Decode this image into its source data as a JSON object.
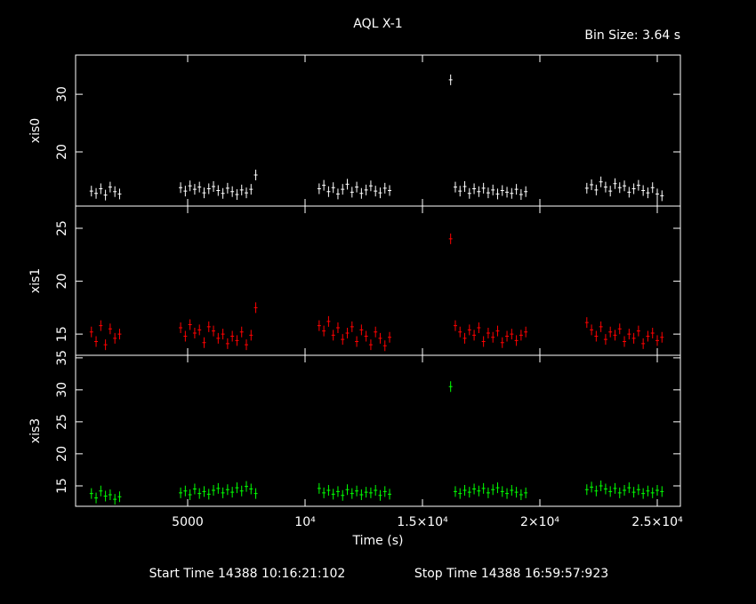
{
  "chart_data": [
    {
      "type": "scatter",
      "title": "AQL X-1",
      "subtitle": "Bin Size: 3.64 s",
      "ylabel": "xis0",
      "color": "#ffffff",
      "xlim": [
        227,
        25985
      ],
      "ylim": [
        10.6,
        36.8
      ],
      "yticks": [
        20,
        30
      ],
      "x": [
        900,
        1100,
        1300,
        1500,
        1700,
        1900,
        2100,
        4700,
        4900,
        5100,
        5300,
        5500,
        5700,
        5900,
        6100,
        6300,
        6500,
        6700,
        6900,
        7100,
        7300,
        7500,
        7700,
        7900,
        10600,
        10800,
        11000,
        11200,
        11400,
        11600,
        11800,
        12000,
        12200,
        12400,
        12600,
        12800,
        13000,
        13200,
        13400,
        13600,
        16200,
        16400,
        16600,
        16800,
        17000,
        17200,
        17400,
        17600,
        17800,
        18000,
        18200,
        18400,
        18600,
        18800,
        19000,
        19200,
        19400,
        22000,
        22200,
        22400,
        22600,
        22800,
        23000,
        23200,
        23400,
        23600,
        23800,
        24000,
        24200,
        24400,
        24600,
        24800,
        25000,
        25200
      ],
      "values": [
        13.2,
        12.8,
        13.6,
        12.5,
        13.9,
        13.1,
        12.7,
        13.8,
        13.2,
        14.1,
        13.5,
        13.9,
        12.9,
        13.6,
        14.0,
        13.3,
        12.8,
        13.7,
        13.1,
        12.6,
        13.4,
        12.9,
        13.5,
        16.0,
        13.6,
        14.2,
        13.1,
        13.8,
        12.7,
        13.5,
        14.4,
        13.0,
        13.9,
        12.8,
        13.4,
        14.1,
        13.2,
        12.9,
        13.7,
        13.3,
        32.5,
        13.9,
        13.2,
        14.0,
        12.8,
        13.6,
        13.1,
        13.7,
        12.9,
        13.4,
        12.7,
        13.3,
        13.0,
        12.8,
        13.5,
        12.6,
        13.1,
        13.7,
        14.3,
        13.4,
        14.8,
        13.9,
        13.2,
        14.5,
        13.8,
        14.1,
        13.0,
        13.6,
        14.2,
        13.3,
        12.9,
        13.8,
        12.7,
        12.4
      ]
    },
    {
      "type": "scatter",
      "ylabel": "xis1",
      "color": "#ff0000",
      "xlim": [
        227,
        25985
      ],
      "ylim": [
        13,
        27.1
      ],
      "yticks": [
        15,
        20,
        25
      ],
      "x": [
        900,
        1100,
        1300,
        1500,
        1700,
        1900,
        2100,
        4700,
        4900,
        5100,
        5300,
        5500,
        5700,
        5900,
        6100,
        6300,
        6500,
        6700,
        6900,
        7100,
        7300,
        7500,
        7700,
        7900,
        10600,
        10800,
        11000,
        11200,
        11400,
        11600,
        11800,
        12000,
        12200,
        12400,
        12600,
        12800,
        13000,
        13200,
        13400,
        13600,
        16200,
        16400,
        16600,
        16800,
        17000,
        17200,
        17400,
        17600,
        17800,
        18000,
        18200,
        18400,
        18600,
        18800,
        19000,
        19200,
        19400,
        22000,
        22200,
        22400,
        22600,
        22800,
        23000,
        23200,
        23400,
        23600,
        23800,
        24000,
        24200,
        24400,
        24600,
        24800,
        25000,
        25200
      ],
      "values": [
        15.2,
        14.3,
        15.8,
        14.0,
        15.5,
        14.6,
        15.0,
        15.6,
        14.8,
        15.9,
        15.1,
        15.4,
        14.2,
        15.7,
        15.3,
        14.6,
        15.0,
        14.1,
        14.8,
        14.4,
        15.2,
        14.0,
        14.9,
        17.5,
        15.8,
        15.3,
        16.2,
        14.9,
        15.6,
        14.5,
        15.1,
        15.7,
        14.3,
        15.4,
        14.8,
        14.0,
        15.2,
        14.6,
        13.9,
        14.7,
        24.0,
        15.8,
        15.2,
        14.6,
        15.4,
        14.9,
        15.6,
        14.3,
        15.1,
        14.7,
        15.3,
        14.2,
        14.8,
        15.0,
        14.4,
        14.9,
        15.2,
        16.1,
        15.4,
        14.8,
        15.7,
        14.5,
        15.2,
        14.9,
        15.5,
        14.3,
        15.0,
        14.6,
        15.3,
        14.1,
        14.8,
        15.1,
        14.4,
        14.7
      ]
    },
    {
      "type": "scatter",
      "ylabel": "xis3",
      "xlabel": "Time (s)",
      "color": "#00ff00",
      "annotations": [
        "Start Time 14388 10:16:21:102",
        "Stop Time 14388 16:59:57:923"
      ],
      "xlim": [
        227,
        25985
      ],
      "ylim": [
        11.8,
        35.4
      ],
      "yticks": [
        15,
        20,
        25,
        30,
        35
      ],
      "xticks": [
        5000,
        {
          "value": 10000,
          "label": "10⁴"
        },
        {
          "value": 15000,
          "label": "1.5×10⁴"
        },
        {
          "value": 20000,
          "label": "2×10⁴"
        },
        {
          "value": 25000,
          "label": "2.5×10⁴"
        }
      ],
      "x": [
        900,
        1100,
        1300,
        1500,
        1700,
        1900,
        2100,
        4700,
        4900,
        5100,
        5300,
        5500,
        5700,
        5900,
        6100,
        6300,
        6500,
        6700,
        6900,
        7100,
        7300,
        7500,
        7700,
        7900,
        10600,
        10800,
        11000,
        11200,
        11400,
        11600,
        11800,
        12000,
        12200,
        12400,
        12600,
        12800,
        13000,
        13200,
        13400,
        13600,
        16200,
        16400,
        16600,
        16800,
        17000,
        17200,
        17400,
        17600,
        17800,
        18000,
        18200,
        18400,
        18600,
        18800,
        19000,
        19200,
        19400,
        22000,
        22200,
        22400,
        22600,
        22800,
        23000,
        23200,
        23400,
        23600,
        23800,
        24000,
        24200,
        24400,
        24600,
        24800,
        25000,
        25200
      ],
      "values": [
        13.8,
        13.1,
        14.2,
        13.4,
        13.6,
        12.9,
        13.3,
        13.9,
        14.2,
        13.6,
        14.5,
        13.8,
        14.1,
        13.7,
        14.3,
        14.6,
        13.9,
        14.4,
        14.0,
        14.7,
        14.2,
        14.9,
        14.5,
        13.8,
        14.6,
        13.9,
        14.3,
        13.7,
        14.1,
        13.5,
        14.4,
        13.8,
        14.2,
        13.6,
        14.0,
        13.9,
        14.3,
        13.5,
        14.1,
        13.7,
        30.5,
        14.1,
        13.8,
        14.3,
        14.0,
        14.5,
        14.2,
        14.6,
        13.9,
        14.4,
        14.7,
        14.1,
        13.8,
        14.3,
        14.0,
        13.6,
        13.9,
        14.4,
        14.8,
        14.2,
        15.0,
        14.5,
        14.1,
        14.6,
        13.9,
        14.3,
        14.7,
        14.0,
        14.4,
        13.8,
        14.2,
        13.9,
        14.3,
        14.1
      ]
    }
  ]
}
